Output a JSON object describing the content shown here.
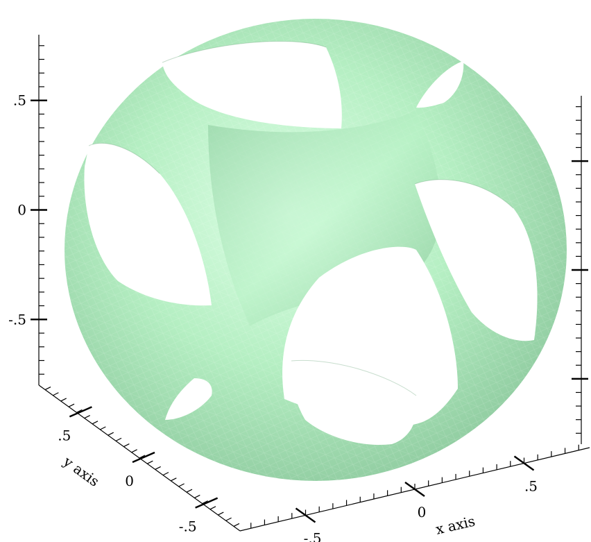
{
  "chart_data": {
    "type": "surface3d",
    "title": "",
    "xlabel": "x axis",
    "ylabel": "y axis",
    "zlabel": "",
    "xlim": [
      -0.8,
      0.8
    ],
    "ylim": [
      -0.8,
      0.8
    ],
    "zlim": [
      -0.8,
      0.8
    ],
    "x_ticks": [
      {
        "value": -0.5,
        "label": "-.5"
      },
      {
        "value": 0,
        "label": "0"
      },
      {
        "value": 0.5,
        "label": ".5"
      }
    ],
    "y_ticks": [
      {
        "value": 0.5,
        "label": ".5"
      },
      {
        "value": 0,
        "label": "0"
      },
      {
        "value": -0.5,
        "label": "-.5"
      }
    ],
    "z_ticks": [
      {
        "value": 0.5,
        "label": ".5"
      },
      {
        "value": 0,
        "label": "0"
      },
      {
        "value": -0.5,
        "label": "-.5"
      }
    ],
    "surface": {
      "description_shape": "sphere with circular holes (cube-sphere intersection)",
      "color": "#9fe8b0",
      "shade_dark": "#6fb884",
      "shade_light": "#d8ffe2",
      "opacity": 0.7
    },
    "grid": false,
    "legend": "none"
  }
}
